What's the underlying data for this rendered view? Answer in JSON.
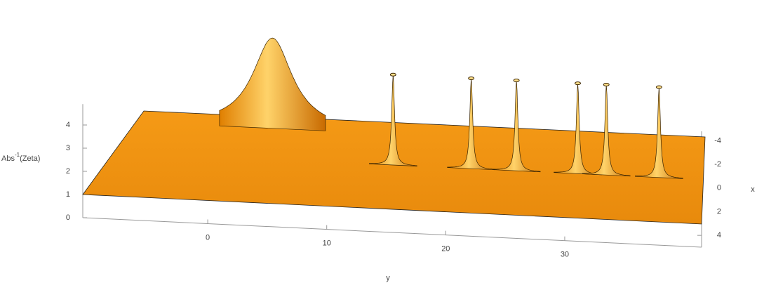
{
  "chart_data": {
    "type": "surface3d",
    "xlabel": "x",
    "ylabel": "y",
    "zlabel": [
      "Abs",
      "-1",
      "(Zeta)"
    ],
    "ylim": [
      -10.5,
      41.5
    ],
    "yticks": [
      0,
      10,
      20,
      30
    ],
    "xlim": [
      -4.8,
      5
    ],
    "xticks": [
      -4,
      -2,
      0,
      2,
      4
    ],
    "zlim": [
      0,
      4.9
    ],
    "zticks": [
      0,
      1,
      2,
      3,
      4
    ],
    "base_level": 1,
    "color": "#f7a21b",
    "peaks": {
      "y": [
        2,
        14.13,
        21.02,
        25.01,
        30.42,
        32.94,
        37.59
      ],
      "x": [
        -3.5,
        0,
        0,
        0,
        0,
        0,
        0
      ],
      "width": [
        2.2,
        0.15,
        0.15,
        0.15,
        0.15,
        0.15,
        0.15
      ]
    }
  }
}
